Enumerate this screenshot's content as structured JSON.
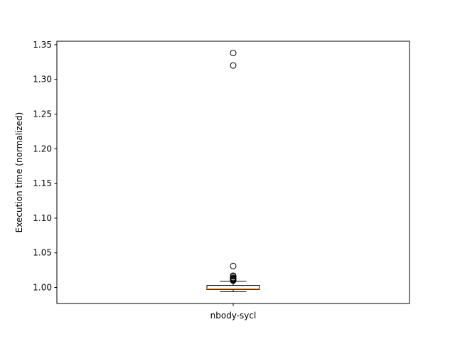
{
  "chart_data": {
    "type": "box",
    "title": "",
    "xlabel": "",
    "ylabel": "Execution time (normalized)",
    "categories": [
      "nbody-sycl"
    ],
    "ylim": [
      0.977,
      1.355
    ],
    "yticks": [
      1.0,
      1.05,
      1.1,
      1.15,
      1.2,
      1.25,
      1.3,
      1.35
    ],
    "ytick_labels": [
      "1.00",
      "1.05",
      "1.10",
      "1.15",
      "1.20",
      "1.25",
      "1.30",
      "1.35"
    ],
    "grid": false,
    "series": [
      {
        "category": "nbody-sycl",
        "whisker_low": 0.994,
        "q1": 0.997,
        "median": 0.998,
        "q3": 1.003,
        "whisker_high": 1.009,
        "outliers": [
          1.01,
          1.011,
          1.012,
          1.013,
          1.014,
          1.016,
          1.017,
          1.031,
          1.32,
          1.338
        ]
      }
    ],
    "colors": {
      "box": "#000000",
      "median": "#ff7f0e",
      "whisker": "#000000",
      "outlier": "#000000"
    }
  }
}
